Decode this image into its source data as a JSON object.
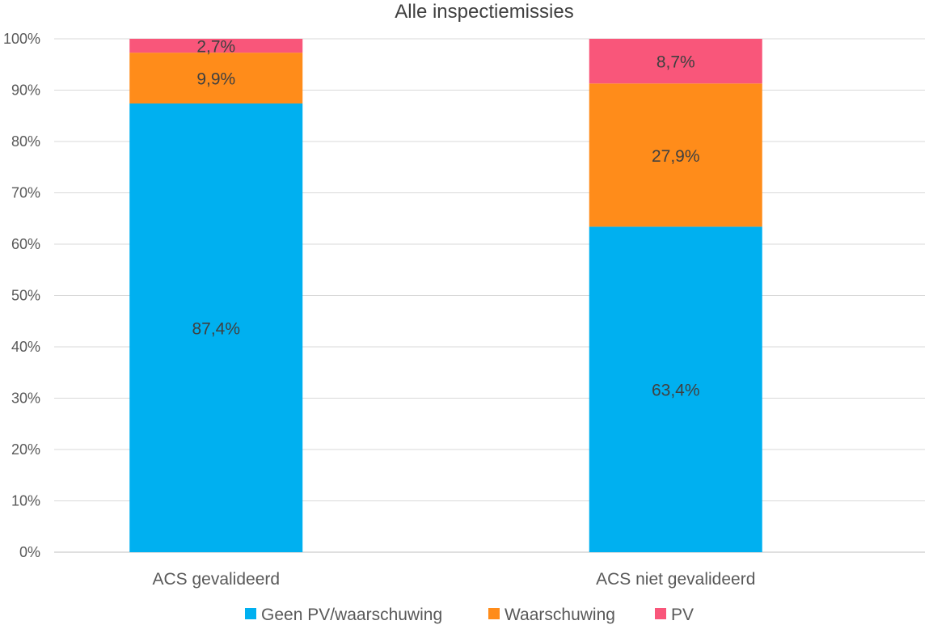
{
  "chart_data": {
    "type": "bar",
    "stacked": true,
    "title": "Alle inspectiemissies",
    "xlabel": "",
    "ylabel": "",
    "categories": [
      "ACS gevalideerd",
      "ACS niet gevalideerd"
    ],
    "series": [
      {
        "name": "Geen PV/waarschuwing",
        "values": [
          87.4,
          63.4
        ],
        "labels": [
          "87,4%",
          "63,4%"
        ],
        "color": "#00B0F0"
      },
      {
        "name": "Waarschuwing",
        "values": [
          9.9,
          27.9
        ],
        "labels": [
          "9,9%",
          "27,9%"
        ],
        "color": "#FF8C1A"
      },
      {
        "name": "PV",
        "values": [
          2.7,
          8.7
        ],
        "labels": [
          "2,7%",
          "8,7%"
        ],
        "color": "#F9567A"
      }
    ],
    "ylim": [
      0,
      100
    ],
    "yticks": [
      "0%",
      "10%",
      "20%",
      "30%",
      "40%",
      "50%",
      "60%",
      "70%",
      "80%",
      "90%",
      "100%"
    ],
    "grid": true,
    "legend": "bottom"
  }
}
